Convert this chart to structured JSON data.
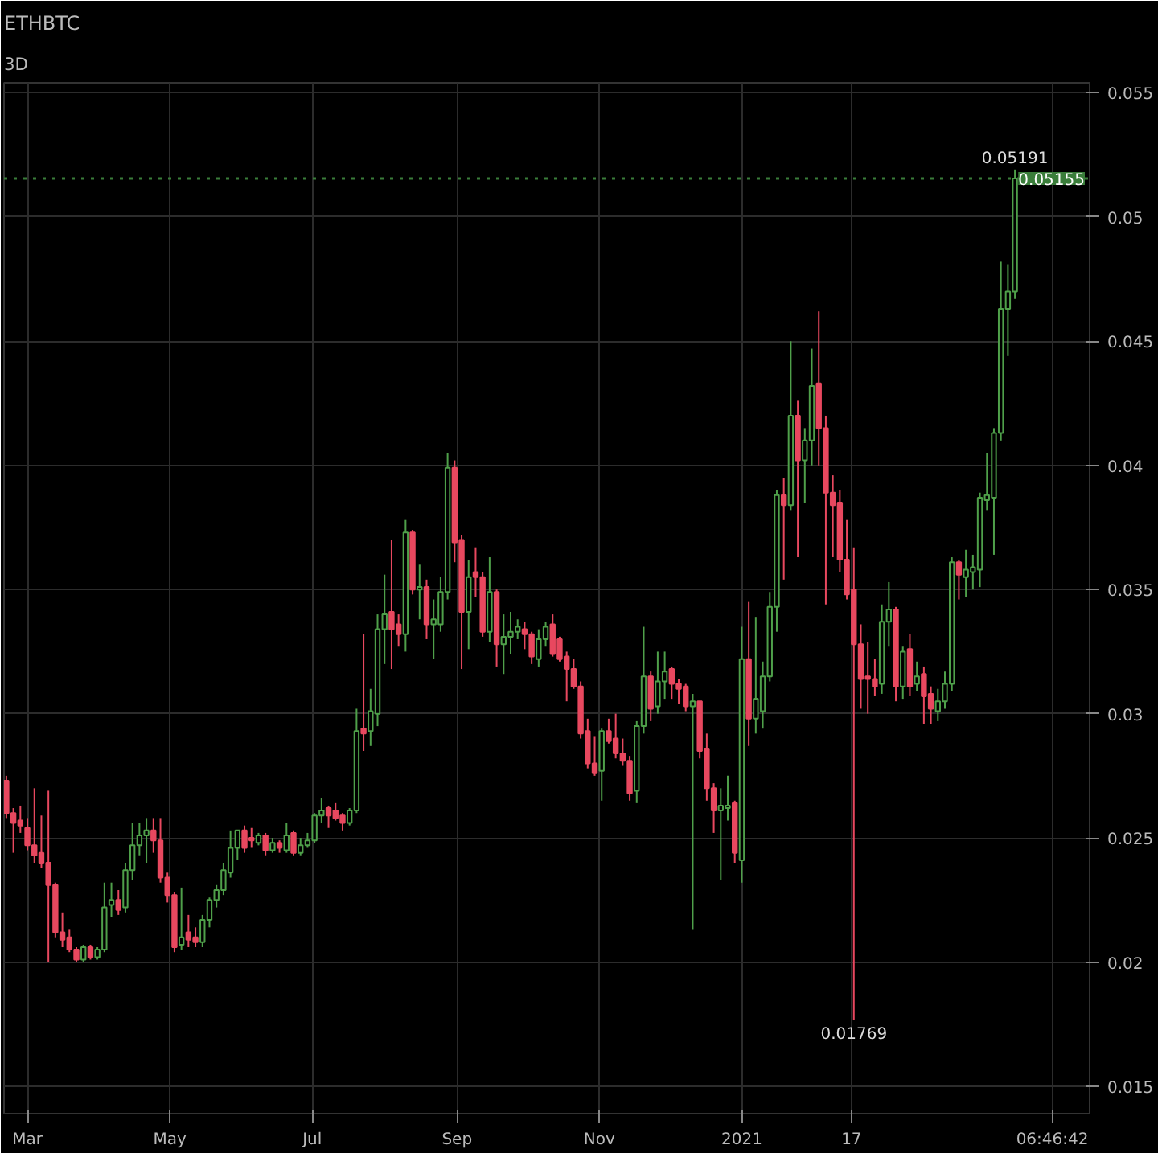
{
  "chart_data": {
    "type": "candlestick",
    "title": "ETHBTC",
    "subtitle": "3D",
    "x": [
      "2020-02-21",
      "2020-02-24",
      "2020-02-27",
      "2020-03-01",
      "2020-03-04",
      "2020-03-07",
      "2020-03-10",
      "2020-03-13",
      "2020-03-16",
      "2020-03-19",
      "2020-03-22",
      "2020-03-25",
      "2020-03-28",
      "2020-03-31",
      "2020-04-03",
      "2020-04-06",
      "2020-04-09",
      "2020-04-12",
      "2020-04-15",
      "2020-04-18",
      "2020-04-21",
      "2020-04-24",
      "2020-04-27",
      "2020-04-30",
      "2020-05-03",
      "2020-05-06",
      "2020-05-09",
      "2020-05-12",
      "2020-05-15",
      "2020-05-18",
      "2020-05-21",
      "2020-05-24",
      "2020-05-27",
      "2020-05-30",
      "2020-06-02",
      "2020-06-05",
      "2020-06-08",
      "2020-06-11",
      "2020-06-14",
      "2020-06-17",
      "2020-06-20",
      "2020-06-23",
      "2020-06-26",
      "2020-06-29",
      "2020-07-02",
      "2020-07-05",
      "2020-07-08",
      "2020-07-11",
      "2020-07-14",
      "2020-07-17",
      "2020-07-20",
      "2020-07-23",
      "2020-07-26",
      "2020-07-29",
      "2020-08-01",
      "2020-08-04",
      "2020-08-07",
      "2020-08-10",
      "2020-08-13",
      "2020-08-16",
      "2020-08-19",
      "2020-08-22",
      "2020-08-25",
      "2020-08-28",
      "2020-08-31",
      "2020-09-03",
      "2020-09-06",
      "2020-09-09",
      "2020-09-12",
      "2020-09-15",
      "2020-09-18",
      "2020-09-21",
      "2020-09-24",
      "2020-09-27",
      "2020-09-30",
      "2020-10-03",
      "2020-10-06",
      "2020-10-09",
      "2020-10-12",
      "2020-10-15",
      "2020-10-18",
      "2020-10-21",
      "2020-10-24",
      "2020-10-27",
      "2020-10-30",
      "2020-11-02",
      "2020-11-05",
      "2020-11-08",
      "2020-11-11",
      "2020-11-14",
      "2020-11-17",
      "2020-11-20",
      "2020-11-23",
      "2020-11-26",
      "2020-11-29",
      "2020-12-02",
      "2020-12-05",
      "2020-12-08",
      "2020-12-11",
      "2020-12-14",
      "2020-12-17",
      "2020-12-20",
      "2020-12-23",
      "2020-12-26",
      "2020-12-29",
      "2021-01-01",
      "2021-01-04",
      "2021-01-07",
      "2021-01-10",
      "2021-01-13",
      "2021-01-16",
      "2021-01-19",
      "2021-01-22",
      "2021-01-25",
      "2021-01-28",
      "2021-01-31",
      "2021-02-03",
      "2021-02-06",
      "2021-02-09",
      "2021-02-12",
      "2021-02-15",
      "2021-02-18",
      "2021-02-21",
      "2021-02-24",
      "2021-02-27",
      "2021-03-02",
      "2021-03-05",
      "2021-03-08",
      "2021-03-11",
      "2021-03-14",
      "2021-03-17",
      "2021-03-20",
      "2021-03-23",
      "2021-03-26",
      "2021-03-29",
      "2021-04-01",
      "2021-04-04",
      "2021-04-07",
      "2021-04-10",
      "2021-04-13",
      "2021-04-16",
      "2021-04-19",
      "2021-04-22",
      "2021-04-25",
      "2021-04-28"
    ],
    "ohlc": [
      [
        0.0273,
        0.0275,
        0.0258,
        0.026
      ],
      [
        0.026,
        0.0262,
        0.0244,
        0.0256
      ],
      [
        0.0257,
        0.0263,
        0.0252,
        0.0255
      ],
      [
        0.0254,
        0.0258,
        0.0245,
        0.0247
      ],
      [
        0.0247,
        0.027,
        0.024,
        0.0243
      ],
      [
        0.0244,
        0.0259,
        0.0238,
        0.024
      ],
      [
        0.024,
        0.0269,
        0.02,
        0.0231
      ],
      [
        0.0231,
        0.0232,
        0.021,
        0.0212
      ],
      [
        0.0212,
        0.022,
        0.0206,
        0.0209
      ],
      [
        0.021,
        0.0213,
        0.0204,
        0.0205
      ],
      [
        0.0205,
        0.0206,
        0.02,
        0.0201
      ],
      [
        0.0201,
        0.0207,
        0.02,
        0.0206
      ],
      [
        0.0206,
        0.0207,
        0.0201,
        0.0202
      ],
      [
        0.0202,
        0.0206,
        0.0201,
        0.0205
      ],
      [
        0.0205,
        0.0232,
        0.0204,
        0.0222
      ],
      [
        0.0223,
        0.0232,
        0.0218,
        0.0225
      ],
      [
        0.0225,
        0.0229,
        0.0219,
        0.0221
      ],
      [
        0.0222,
        0.024,
        0.022,
        0.0237
      ],
      [
        0.0237,
        0.0256,
        0.0233,
        0.0247
      ],
      [
        0.0247,
        0.0256,
        0.0243,
        0.0251
      ],
      [
        0.0251,
        0.0258,
        0.024,
        0.0253
      ],
      [
        0.0253,
        0.0258,
        0.0244,
        0.0249
      ],
      [
        0.0249,
        0.0258,
        0.0232,
        0.0234
      ],
      [
        0.0234,
        0.0236,
        0.0224,
        0.0227
      ],
      [
        0.0227,
        0.0228,
        0.0204,
        0.0206
      ],
      [
        0.0207,
        0.023,
        0.0205,
        0.021
      ],
      [
        0.0212,
        0.0219,
        0.0206,
        0.0209
      ],
      [
        0.021,
        0.0214,
        0.0206,
        0.0208
      ],
      [
        0.0208,
        0.0219,
        0.0206,
        0.0217
      ],
      [
        0.0217,
        0.0226,
        0.0214,
        0.0225
      ],
      [
        0.0225,
        0.0231,
        0.0222,
        0.0229
      ],
      [
        0.0229,
        0.024,
        0.0227,
        0.0237
      ],
      [
        0.0236,
        0.0253,
        0.0234,
        0.0246
      ],
      [
        0.0246,
        0.0253,
        0.0241,
        0.0253
      ],
      [
        0.0253,
        0.0255,
        0.0244,
        0.0246
      ],
      [
        0.025,
        0.0254,
        0.0246,
        0.0249
      ],
      [
        0.0248,
        0.0252,
        0.0247,
        0.0251
      ],
      [
        0.0251,
        0.0252,
        0.0243,
        0.0245
      ],
      [
        0.0245,
        0.025,
        0.0244,
        0.0248
      ],
      [
        0.0248,
        0.0249,
        0.0244,
        0.0246
      ],
      [
        0.0245,
        0.0256,
        0.0244,
        0.0251
      ],
      [
        0.0252,
        0.0253,
        0.0243,
        0.0244
      ],
      [
        0.0244,
        0.025,
        0.0243,
        0.0247
      ],
      [
        0.0247,
        0.0252,
        0.0246,
        0.0249
      ],
      [
        0.0249,
        0.026,
        0.0248,
        0.0259
      ],
      [
        0.0259,
        0.0266,
        0.0256,
        0.0261
      ],
      [
        0.0262,
        0.0263,
        0.0254,
        0.0259
      ],
      [
        0.0261,
        0.0264,
        0.0257,
        0.0258
      ],
      [
        0.0259,
        0.026,
        0.0253,
        0.0256
      ],
      [
        0.0256,
        0.0262,
        0.0255,
        0.0261
      ],
      [
        0.0261,
        0.0302,
        0.026,
        0.0293
      ],
      [
        0.0294,
        0.0332,
        0.0285,
        0.0292
      ],
      [
        0.0293,
        0.031,
        0.0287,
        0.0301
      ],
      [
        0.03,
        0.034,
        0.0295,
        0.0334
      ],
      [
        0.0334,
        0.0356,
        0.032,
        0.034
      ],
      [
        0.0341,
        0.037,
        0.0318,
        0.0334
      ],
      [
        0.0336,
        0.034,
        0.0327,
        0.0332
      ],
      [
        0.0332,
        0.0378,
        0.0325,
        0.0373
      ],
      [
        0.0373,
        0.0374,
        0.0348,
        0.035
      ],
      [
        0.035,
        0.036,
        0.0338,
        0.0351
      ],
      [
        0.0351,
        0.0354,
        0.033,
        0.0336
      ],
      [
        0.0336,
        0.0346,
        0.0322,
        0.0338
      ],
      [
        0.0336,
        0.0355,
        0.0333,
        0.0349
      ],
      [
        0.0349,
        0.0405,
        0.0346,
        0.0399
      ],
      [
        0.0399,
        0.0402,
        0.0361,
        0.0369
      ],
      [
        0.037,
        0.0372,
        0.0318,
        0.0341
      ],
      [
        0.0341,
        0.0362,
        0.0326,
        0.0355
      ],
      [
        0.0357,
        0.0367,
        0.0347,
        0.0355
      ],
      [
        0.0355,
        0.0357,
        0.0331,
        0.0333
      ],
      [
        0.0333,
        0.0363,
        0.0329,
        0.0349
      ],
      [
        0.0349,
        0.035,
        0.0319,
        0.0328
      ],
      [
        0.0328,
        0.034,
        0.0316,
        0.0331
      ],
      [
        0.0331,
        0.0341,
        0.0324,
        0.0333
      ],
      [
        0.0333,
        0.0338,
        0.033,
        0.0335
      ],
      [
        0.0334,
        0.0337,
        0.0326,
        0.0332
      ],
      [
        0.0332,
        0.0333,
        0.032,
        0.0323
      ],
      [
        0.0322,
        0.0334,
        0.0319,
        0.033
      ],
      [
        0.033,
        0.0337,
        0.0327,
        0.0335
      ],
      [
        0.0336,
        0.034,
        0.0323,
        0.0324
      ],
      [
        0.033,
        0.0331,
        0.0321,
        0.0322
      ],
      [
        0.0323,
        0.0325,
        0.0305,
        0.0318
      ],
      [
        0.0318,
        0.0322,
        0.031,
        0.0311
      ],
      [
        0.0311,
        0.0313,
        0.029,
        0.0292
      ],
      [
        0.0293,
        0.0298,
        0.0278,
        0.028
      ],
      [
        0.028,
        0.0291,
        0.0275,
        0.0276
      ],
      [
        0.0277,
        0.0294,
        0.0265,
        0.0293
      ],
      [
        0.0293,
        0.0298,
        0.0288,
        0.0289
      ],
      [
        0.029,
        0.03,
        0.0282,
        0.0284
      ],
      [
        0.0284,
        0.029,
        0.0279,
        0.0281
      ],
      [
        0.0281,
        0.0283,
        0.0265,
        0.0268
      ],
      [
        0.0269,
        0.0297,
        0.0264,
        0.0295
      ],
      [
        0.0295,
        0.0335,
        0.0292,
        0.0315
      ],
      [
        0.0315,
        0.0317,
        0.0297,
        0.0302
      ],
      [
        0.0303,
        0.0325,
        0.03,
        0.0313
      ],
      [
        0.0313,
        0.0325,
        0.0306,
        0.0317
      ],
      [
        0.0318,
        0.0319,
        0.0306,
        0.0312
      ],
      [
        0.0312,
        0.0314,
        0.0304,
        0.031
      ],
      [
        0.0311,
        0.0312,
        0.0301,
        0.0303
      ],
      [
        0.0303,
        0.0308,
        0.0213,
        0.0305
      ],
      [
        0.0305,
        0.0305,
        0.0282,
        0.0285
      ],
      [
        0.0286,
        0.0292,
        0.0265,
        0.027
      ],
      [
        0.027,
        0.0272,
        0.0252,
        0.0261
      ],
      [
        0.0261,
        0.027,
        0.0233,
        0.0263
      ],
      [
        0.0262,
        0.0275,
        0.0257,
        0.0263
      ],
      [
        0.0264,
        0.0265,
        0.024,
        0.0244
      ],
      [
        0.0241,
        0.0335,
        0.0232,
        0.0322
      ],
      [
        0.0322,
        0.0345,
        0.0287,
        0.0298
      ],
      [
        0.0298,
        0.0339,
        0.0292,
        0.0306
      ],
      [
        0.0301,
        0.0321,
        0.0294,
        0.0315
      ],
      [
        0.0315,
        0.0349,
        0.0313,
        0.0343
      ],
      [
        0.0343,
        0.039,
        0.0333,
        0.0388
      ],
      [
        0.0388,
        0.0395,
        0.0354,
        0.0384
      ],
      [
        0.0384,
        0.045,
        0.0382,
        0.042
      ],
      [
        0.042,
        0.0426,
        0.0363,
        0.0402
      ],
      [
        0.0402,
        0.0415,
        0.0385,
        0.041
      ],
      [
        0.041,
        0.0447,
        0.04,
        0.0432
      ],
      [
        0.0433,
        0.0462,
        0.04,
        0.0415
      ],
      [
        0.0415,
        0.042,
        0.0344,
        0.0389
      ],
      [
        0.0389,
        0.0396,
        0.0363,
        0.0384
      ],
      [
        0.0385,
        0.039,
        0.0357,
        0.0362
      ],
      [
        0.0362,
        0.0378,
        0.0346,
        0.0348
      ],
      [
        0.035,
        0.0367,
        0.01769,
        0.0328
      ],
      [
        0.0328,
        0.0336,
        0.0302,
        0.0314
      ],
      [
        0.0315,
        0.0329,
        0.03,
        0.0314
      ],
      [
        0.0314,
        0.0322,
        0.0307,
        0.0311
      ],
      [
        0.0312,
        0.0344,
        0.0308,
        0.0337
      ],
      [
        0.0337,
        0.0353,
        0.0327,
        0.0342
      ],
      [
        0.0342,
        0.0343,
        0.0305,
        0.0311
      ],
      [
        0.0311,
        0.0327,
        0.0306,
        0.0325
      ],
      [
        0.0326,
        0.0332,
        0.0307,
        0.0311
      ],
      [
        0.0312,
        0.0321,
        0.0309,
        0.0315
      ],
      [
        0.0316,
        0.0319,
        0.0296,
        0.0307
      ],
      [
        0.0308,
        0.0311,
        0.0296,
        0.0302
      ],
      [
        0.0301,
        0.031,
        0.0297,
        0.0305
      ],
      [
        0.0305,
        0.0317,
        0.0302,
        0.0312
      ],
      [
        0.0312,
        0.0363,
        0.0309,
        0.0361
      ],
      [
        0.0361,
        0.0362,
        0.0346,
        0.0356
      ],
      [
        0.0355,
        0.0366,
        0.0347,
        0.0358
      ],
      [
        0.0357,
        0.0364,
        0.035,
        0.0359
      ],
      [
        0.0358,
        0.0389,
        0.0351,
        0.0387
      ],
      [
        0.0386,
        0.0405,
        0.0382,
        0.0388
      ],
      [
        0.0387,
        0.0415,
        0.0364,
        0.0413
      ],
      [
        0.0413,
        0.0482,
        0.041,
        0.0463
      ],
      [
        0.0463,
        0.0481,
        0.0444,
        0.047
      ],
      [
        0.047,
        0.05191,
        0.0467,
        0.05155
      ]
    ],
    "xlim": [
      "2020-02-20",
      "2021-05-30"
    ],
    "ylim": [
      0.0139,
      0.0554
    ],
    "xticks": [
      {
        "value": "2020-03-01",
        "label": "Mar"
      },
      {
        "value": "2020-05-01",
        "label": "May"
      },
      {
        "value": "2020-07-01",
        "label": "Jul"
      },
      {
        "value": "2020-09-01",
        "label": "Sep"
      },
      {
        "value": "2020-11-01",
        "label": "Nov"
      },
      {
        "value": "2021-01-01",
        "label": "2021"
      },
      {
        "value": "2021-02-17",
        "label": "17"
      },
      {
        "value": "2021-05-14",
        "label": "06:46:42"
      }
    ],
    "yticks": [
      0.015,
      0.02,
      0.025,
      0.03,
      0.035,
      0.04,
      0.045,
      0.05,
      0.055
    ],
    "grid": true,
    "annotations": [
      {
        "text": "0.05191",
        "x": "2021-04-28",
        "y": 0.05191
      },
      {
        "text": "0.01769",
        "x": "2021-02-18",
        "y": 0.01769
      }
    ],
    "ref_lines": [
      {
        "axis": "y",
        "value": 0.05155,
        "label": "0.05155",
        "color": "#3a7d3a",
        "line_style": "dotted"
      }
    ]
  }
}
